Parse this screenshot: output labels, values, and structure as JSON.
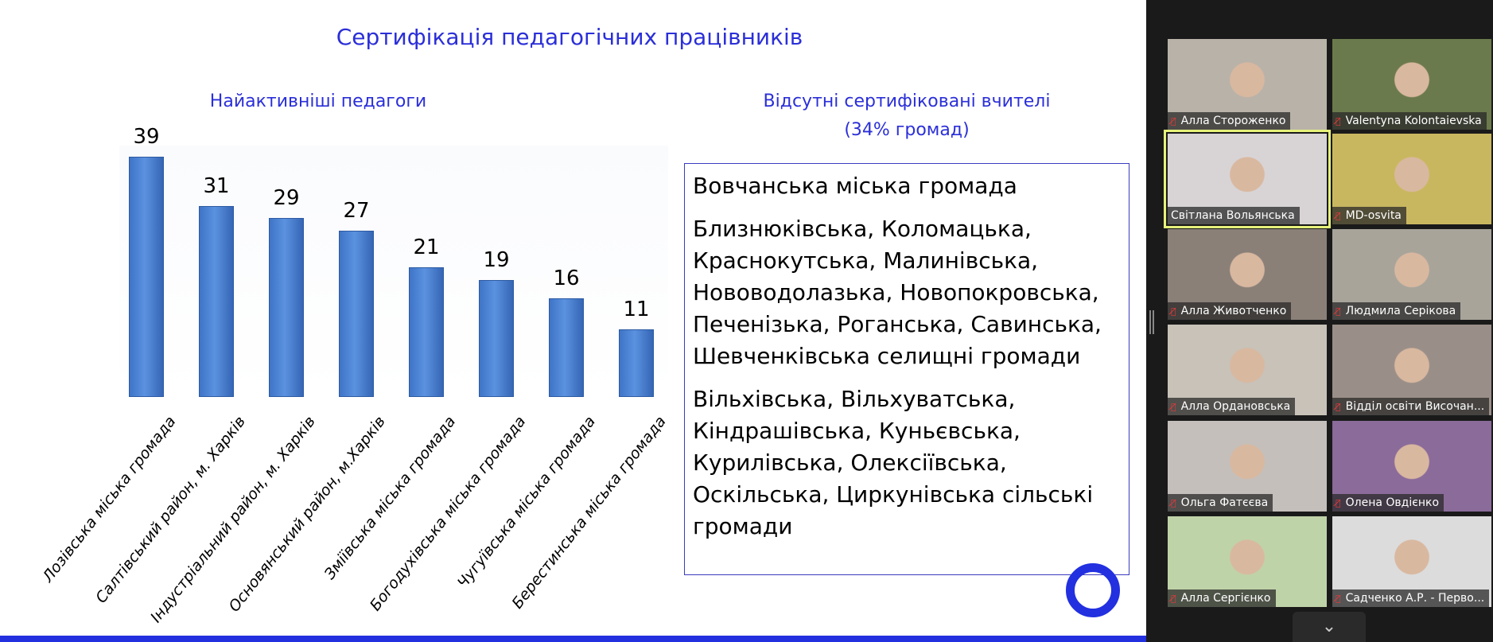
{
  "slide": {
    "title": "Сертифікація педагогічних працівників",
    "left_subtitle": "Найактивніші педагоги",
    "right_subtitle_line1": "Відсутні сертифіковані вчителі",
    "right_subtitle_line2": "(34% громад)",
    "list": [
      "Вовчанська міська громада",
      "Близнюківська, Коломацька, Краснокутська, Малинівська, Нововодолазька, Новопокровська, Печенізька, Роганська, Савинська, Шевченківська селищні громади",
      "Вільхівська, Вільхуватська, Кіндрашівська, Куньєвська, Курилівська, Олексіївська, Оскільська, Циркунівська сільські громади"
    ],
    "accent_color": "#2230e0"
  },
  "chart_data": {
    "type": "bar",
    "title": "Найактивніші педагоги",
    "categories": [
      "Лозівська міська громада",
      "Салтівський район, м. Харків",
      "Індустріальний район, м. Харків",
      "Основянський район, м.Харків",
      "Зміївська міська громада",
      "Богодухівська міська громада",
      "Чугуївська міська громада",
      "Берестинська міська громада"
    ],
    "values": [
      39,
      31,
      29,
      27,
      21,
      19,
      16,
      11
    ],
    "ylim": [
      0,
      40
    ],
    "xlabel": "",
    "ylabel": "",
    "color": "#4a80d0"
  },
  "participants": [
    {
      "name": "Алла Стороженко",
      "muted": true
    },
    {
      "name": "Valentyna Kolontaievska",
      "muted": true
    },
    {
      "name": "Світлана Вольянська",
      "muted": false,
      "active": true
    },
    {
      "name": "MD-osvita",
      "muted": true
    },
    {
      "name": "Алла Животченко",
      "muted": true
    },
    {
      "name": "Людмила Серікова",
      "muted": true
    },
    {
      "name": "Алла Ордановська",
      "muted": true
    },
    {
      "name": "Відділ освіти Височан...",
      "muted": true
    },
    {
      "name": "Ольга Фатєєва",
      "muted": true
    },
    {
      "name": "Олена Овдієнко",
      "muted": true
    },
    {
      "name": "Алла Сергієнко",
      "muted": true
    },
    {
      "name": "Садченко А.Р. - Перво...",
      "muted": true
    }
  ],
  "icons": {
    "mic_muted": "⁄̸",
    "chevron": "⌄"
  }
}
